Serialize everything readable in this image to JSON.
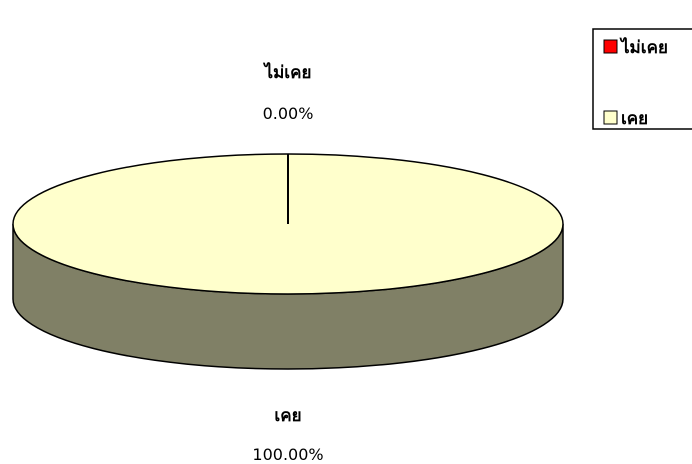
{
  "chart_data": {
    "type": "pie",
    "style": "3d",
    "categories": [
      "ไม่เคย",
      "เคย"
    ],
    "values": [
      0.0,
      100.0
    ],
    "data_labels": [
      {
        "category": "ไม่เคย",
        "percent": "0.00%"
      },
      {
        "category": "เคย",
        "percent": "100.00%"
      }
    ],
    "legend": {
      "placement": "top-right",
      "entries": [
        {
          "label": "ไม่เคย",
          "color": "#ff0000"
        },
        {
          "label": "เคย",
          "color": "#ffffcc"
        }
      ]
    },
    "colors": {
      "top": "#ffffcc",
      "side": "#808066",
      "outline": "#000000"
    }
  }
}
